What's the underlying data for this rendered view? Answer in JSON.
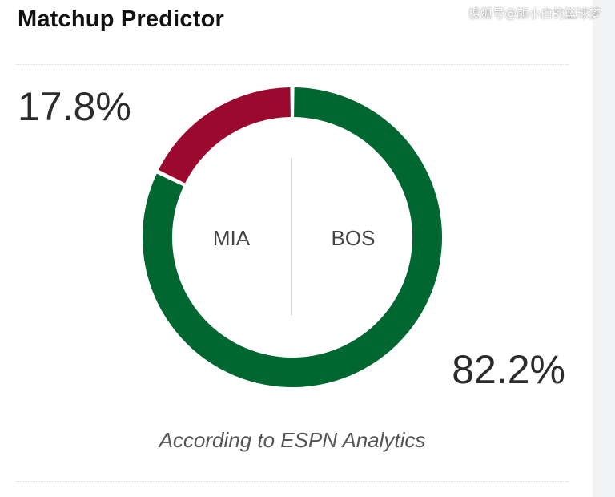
{
  "header": {
    "title": "Matchup Predictor",
    "watermark": "搜狐号@颜小白的篮球梦"
  },
  "footer": {
    "source": "According to ESPN Analytics"
  },
  "colors": {
    "away": "#9b0a2e",
    "home": "#016730",
    "divider": "#c8c8c8"
  },
  "chart_data": {
    "type": "pie",
    "categories": [
      "MIA",
      "BOS"
    ],
    "values": [
      17.8,
      82.2
    ],
    "value_labels": [
      "17.8%",
      "82.2%"
    ],
    "donut": true
  }
}
